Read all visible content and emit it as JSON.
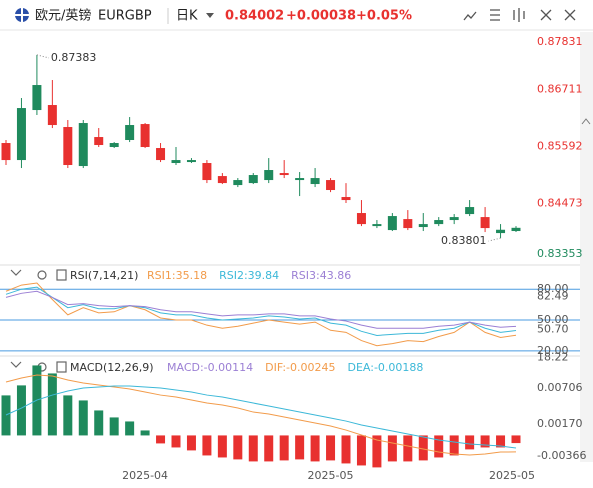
{
  "header": {
    "name": "欧元/英镑",
    "symbol": "EURGBP",
    "period": "日K",
    "last": "0.84002",
    "change": "+0.00038",
    "change_pct": "+0.05%"
  },
  "chart_data": [
    {
      "type": "candlestick",
      "up_color": "#1f8a5d",
      "down_color": "#e8312f",
      "open": [
        0.8566,
        0.85327,
        0.86305,
        0.86403,
        0.85973,
        0.8521,
        0.85777,
        0.85582,
        0.85719,
        0.86031,
        0.85562,
        0.85269,
        0.85288,
        0.85269,
        0.85014,
        0.84838,
        0.84877,
        0.84936,
        0.85073,
        0.84936,
        0.84858,
        0.84936,
        0.84604,
        0.84291,
        0.84036,
        0.83958,
        0.84173,
        0.84017,
        0.84075,
        0.84154,
        0.84271,
        0.84212,
        0.83899,
        0.83939
      ],
      "high": [
        0.85719,
        0.8654,
        0.87383,
        0.86892,
        0.8611,
        0.8611,
        0.85953,
        0.85679,
        0.86168,
        0.86051,
        0.8566,
        0.85582,
        0.85366,
        0.85327,
        0.85073,
        0.84975,
        0.85073,
        0.85366,
        0.85327,
        0.85093,
        0.85171,
        0.84975,
        0.84877,
        0.84545,
        0.84154,
        0.84291,
        0.84349,
        0.84291,
        0.84212,
        0.84271,
        0.84545,
        0.84408,
        0.84075,
        0.84036
      ],
      "low": [
        0.8523,
        0.85171,
        0.86208,
        0.85953,
        0.85171,
        0.85171,
        0.85582,
        0.85562,
        0.85679,
        0.85562,
        0.85288,
        0.8523,
        0.85269,
        0.84877,
        0.84858,
        0.84799,
        0.84858,
        0.84877,
        0.84975,
        0.84623,
        0.84799,
        0.847,
        0.84486,
        0.84036,
        0.83997,
        0.83939,
        0.83958,
        0.83939,
        0.84036,
        0.84075,
        0.84232,
        0.83919,
        0.83801,
        0.83919
      ],
      "close": [
        0.85327,
        0.86344,
        0.86794,
        0.86012,
        0.8523,
        0.86051,
        0.85621,
        0.8566,
        0.86012,
        0.85582,
        0.85327,
        0.85327,
        0.85327,
        0.84936,
        0.84877,
        0.84936,
        0.85034,
        0.85132,
        0.85034,
        0.84975,
        0.84975,
        0.84741,
        0.84545,
        0.84075,
        0.84075,
        0.84232,
        0.83997,
        0.84075,
        0.84154,
        0.84212,
        0.84408,
        0.83997,
        0.83964,
        0.84002
      ],
      "ylim": [
        0.83353,
        0.87831
      ],
      "yticks": [
        0.87831,
        0.86711,
        0.85592,
        0.84473,
        0.83353
      ],
      "annotations": [
        0.87383,
        0.83801
      ]
    },
    {
      "type": "line",
      "title": "RSI(7,14,21)",
      "series": [
        {
          "name": "RSI1",
          "label": "RSI1:35.18",
          "color": "#f29b4a",
          "values": [
            78,
            84,
            86,
            70,
            55,
            62,
            57,
            58,
            64,
            60,
            52,
            50,
            50,
            45,
            42,
            44,
            47,
            50,
            48,
            46,
            48,
            40,
            38,
            30,
            25,
            27,
            30,
            29,
            34,
            38,
            48,
            38,
            33,
            35.18
          ]
        },
        {
          "name": "RSI2",
          "label": "RSI2:39.84",
          "color": "#3cb8d8",
          "values": [
            75,
            80,
            82,
            72,
            62,
            65,
            61,
            61,
            64,
            62,
            57,
            55,
            55,
            52,
            50,
            51,
            52,
            54,
            53,
            51,
            52,
            47,
            45,
            39,
            35,
            36,
            37,
            37,
            40,
            42,
            48,
            42,
            38,
            39.84
          ]
        },
        {
          "name": "RSI3",
          "label": "RSI3:43.86",
          "color": "#9b7fd4",
          "values": [
            72,
            76,
            78,
            72,
            65,
            66,
            64,
            63,
            64,
            63,
            60,
            58,
            58,
            56,
            54,
            55,
            55,
            56,
            56,
            54,
            54,
            51,
            49,
            45,
            42,
            42,
            42,
            42,
            44,
            45,
            48,
            45,
            43,
            43.86
          ]
        }
      ],
      "ylim": [
        15,
        87
      ],
      "yticks": [
        {
          "value": 80,
          "label": "80.00"
        },
        {
          "value": 50,
          "label": "50.00"
        },
        {
          "value": 20,
          "label": "20.00"
        }
      ],
      "axis_marks": [
        {
          "value": 82.49,
          "label": "82.49"
        },
        {
          "value": 50.7,
          "label": "50.70"
        },
        {
          "value": 18.22,
          "label": "18.22"
        }
      ],
      "grid": true,
      "grid_color": "#4a9be0"
    },
    {
      "type": "macd",
      "title": "MACD(12,26,9)",
      "categories": [
        null,
        null,
        null,
        null,
        null,
        null,
        null,
        null,
        null,
        "2025-04",
        null,
        null,
        null,
        null,
        null,
        null,
        null,
        null,
        null,
        null,
        null,
        "2025-05",
        null,
        null,
        null,
        null,
        null,
        null,
        null,
        null,
        null,
        null,
        null,
        "2025-05"
      ],
      "up_color": "#1f8a5d",
      "down_color": "#e8312f",
      "series": [
        {
          "name": "MACD",
          "label": "MACD:-0.00114",
          "color": "#9b7fd4",
          "values": [
            0.00596,
            0.00745,
            0.01042,
            0.00923,
            0.00596,
            0.00521,
            0.00372,
            0.00268,
            0.00208,
            0.00074,
            -0.00119,
            -0.00179,
            -0.00223,
            -0.00298,
            -0.00328,
            -0.00357,
            -0.00387,
            -0.00387,
            -0.00372,
            -0.00357,
            -0.00387,
            -0.00372,
            -0.00417,
            -0.00447,
            -0.00476,
            -0.00387,
            -0.00387,
            -0.00372,
            -0.00328,
            -0.00298,
            -0.00208,
            -0.00179,
            -0.00179,
            -0.00114
          ]
        },
        {
          "name": "DIF",
          "label": "DIF:-0.00245",
          "color": "#f29b4a",
          "values": [
            0.00795,
            0.00855,
            0.00899,
            0.00884,
            0.00825,
            0.0078,
            0.0075,
            0.00721,
            0.00691,
            0.00646,
            0.00601,
            0.00572,
            0.00527,
            0.00482,
            0.00453,
            0.00408,
            0.00348,
            0.00319,
            0.00274,
            0.00229,
            0.00185,
            0.0014,
            0.0008,
            6e-05,
            -0.00068,
            -0.00113,
            -0.00158,
            -0.00202,
            -0.00247,
            -0.00277,
            -0.00292,
            -0.00277,
            -0.00247,
            -0.00245
          ]
        },
        {
          "name": "DEA",
          "label": "DEA:-0.00188",
          "color": "#3cb8d8",
          "values": [
            0.00304,
            0.00408,
            0.00527,
            0.00601,
            0.00661,
            0.00706,
            0.00721,
            0.00736,
            0.00736,
            0.00721,
            0.00706,
            0.00676,
            0.00646,
            0.00601,
            0.00572,
            0.00527,
            0.00482,
            0.00438,
            0.00393,
            0.00348,
            0.00304,
            0.00259,
            0.00214,
            0.00155,
            0.0011,
            0.00066,
            0.00021,
            -0.00024,
            -0.00068,
            -0.00098,
            -0.00128,
            -0.00143,
            -0.00158,
            -0.00188
          ]
        }
      ],
      "ylim": [
        -0.00485,
        0.01123
      ],
      "yticks": [
        0.00706,
        {
          "value": 0.0017,
          "label": "0.00170"
        },
        -0.00366
      ]
    }
  ]
}
